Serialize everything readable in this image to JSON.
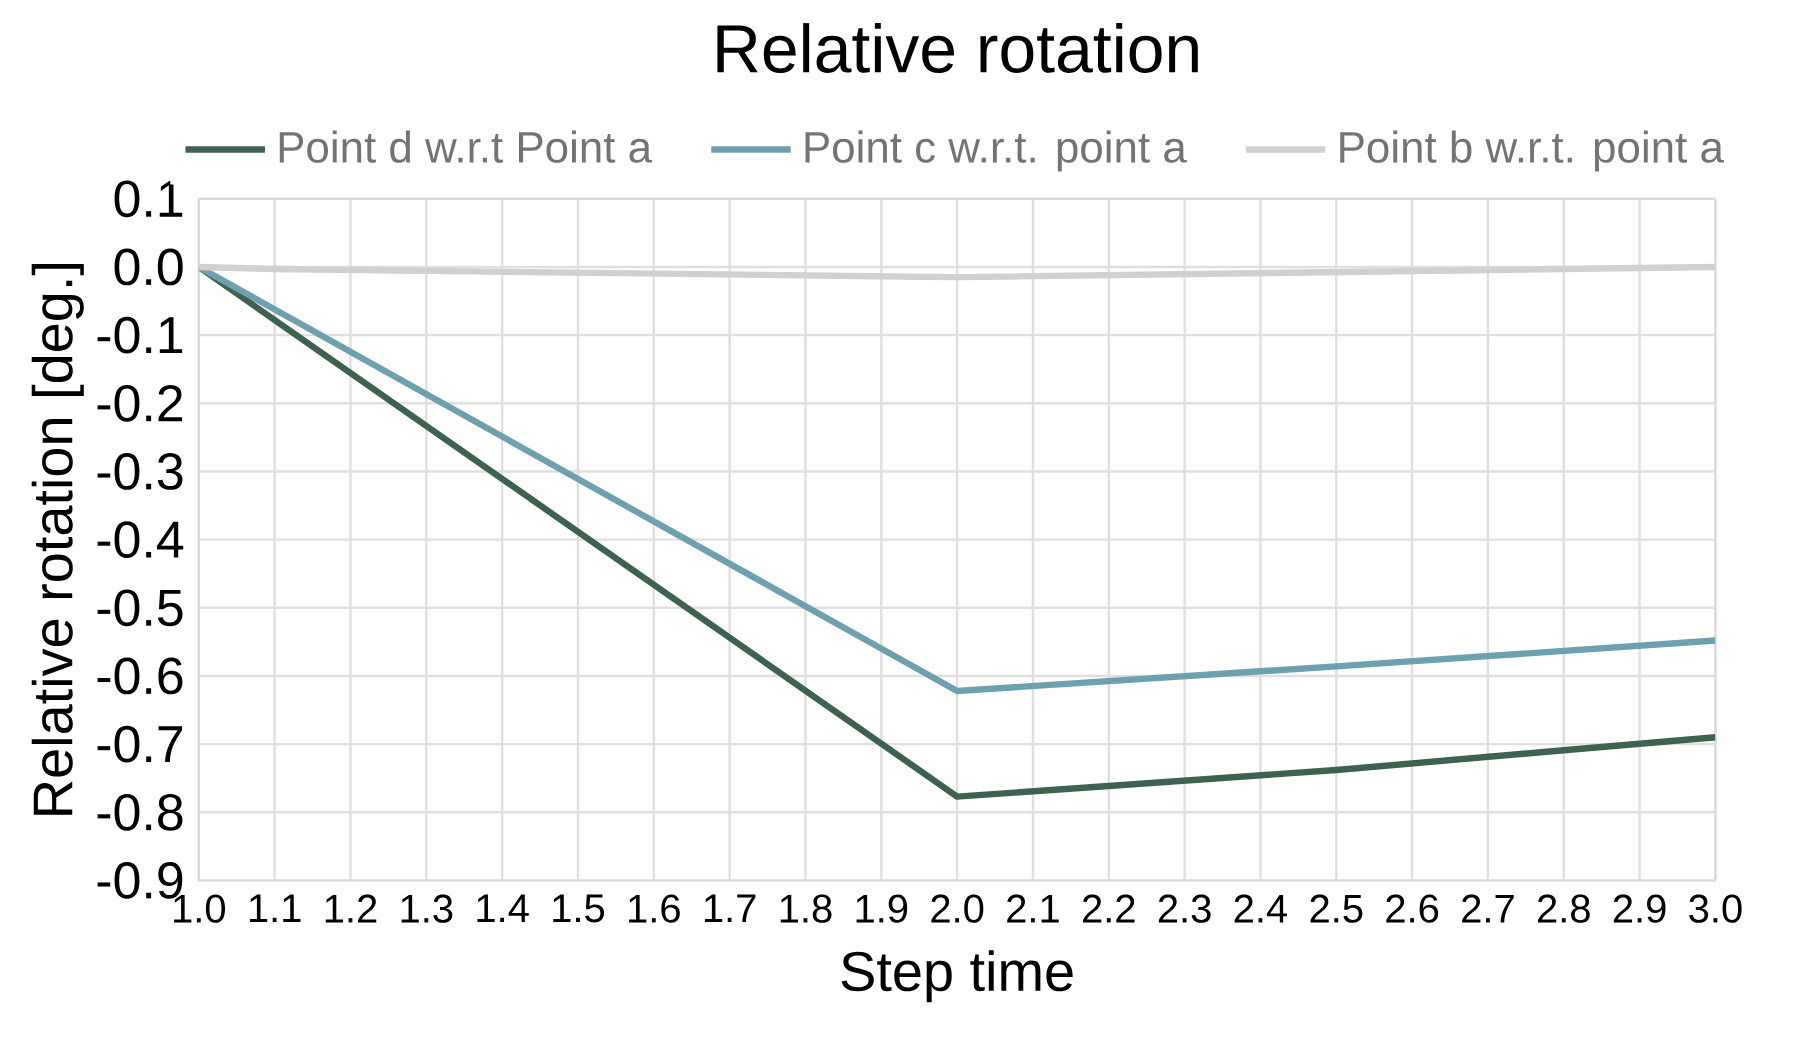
{
  "chart_data": {
    "type": "line",
    "title": "Relative rotation",
    "xlabel": "Step time",
    "ylabel": "Relative rotation [deg.]",
    "xlim": [
      1.0,
      3.0
    ],
    "xticks": [
      {
        "value": 1.0,
        "label": "1.0"
      },
      {
        "value": 1.1,
        "label": "1.1"
      },
      {
        "value": 1.2,
        "label": "1.2"
      },
      {
        "value": 1.3,
        "label": "1.3"
      },
      {
        "value": 1.4,
        "label": "1.4"
      },
      {
        "value": 1.5,
        "label": "1.5"
      },
      {
        "value": 1.6,
        "label": "1.6"
      },
      {
        "value": 1.7,
        "label": "1.7"
      },
      {
        "value": 1.8,
        "label": "1.8"
      },
      {
        "value": 1.9,
        "label": "1.9"
      },
      {
        "value": 2.0,
        "label": "2.0"
      },
      {
        "value": 2.1,
        "label": "2.1"
      },
      {
        "value": 2.2,
        "label": "2.2"
      },
      {
        "value": 2.3,
        "label": "2.3"
      },
      {
        "value": 2.4,
        "label": "2.4"
      },
      {
        "value": 2.5,
        "label": "2.5"
      },
      {
        "value": 2.6,
        "label": "2.6"
      },
      {
        "value": 2.7,
        "label": "2.7"
      },
      {
        "value": 2.8,
        "label": "2.8"
      },
      {
        "value": 2.9,
        "label": "2.9"
      },
      {
        "value": 3.0,
        "label": "3.0"
      }
    ],
    "ylim": [
      -0.9,
      0.1
    ],
    "yticks": [
      {
        "value": -0.9,
        "label": "-0.9"
      },
      {
        "value": -0.8,
        "label": "-0.8"
      },
      {
        "value": -0.7,
        "label": "-0.7"
      },
      {
        "value": -0.6,
        "label": "-0.6"
      },
      {
        "value": -0.5,
        "label": "-0.5"
      },
      {
        "value": -0.4,
        "label": "-0.4"
      },
      {
        "value": -0.3,
        "label": "-0.3"
      },
      {
        "value": -0.2,
        "label": "-0.2"
      },
      {
        "value": -0.1,
        "label": "-0.1"
      },
      {
        "value": 0.0,
        "label": "0.0"
      },
      {
        "value": 0.1,
        "label": "0.1"
      }
    ],
    "grid": true,
    "legend": "top",
    "marker": "none",
    "line_style": "solid",
    "series": [
      {
        "name": "Point d w.r.t Point a",
        "color": "#3e6150",
        "x": [
          1.0,
          2.0,
          2.5,
          2.8,
          3.0
        ],
        "values": [
          0.0,
          -0.777,
          -0.738,
          -0.709,
          -0.69
        ]
      },
      {
        "name": "Point c w.r.t. point a",
        "color": "#6fa0ad",
        "x": [
          1.0,
          2.0,
          2.5,
          3.0
        ],
        "values": [
          0.0,
          -0.622,
          -0.586,
          -0.548
        ]
      },
      {
        "name": "Point b w.r.t. point a",
        "color": "#d0d0d0",
        "x": [
          1.0,
          1.1,
          2.0,
          3.0
        ],
        "values": [
          0.0,
          -0.003,
          -0.015,
          0.0
        ]
      }
    ]
  }
}
